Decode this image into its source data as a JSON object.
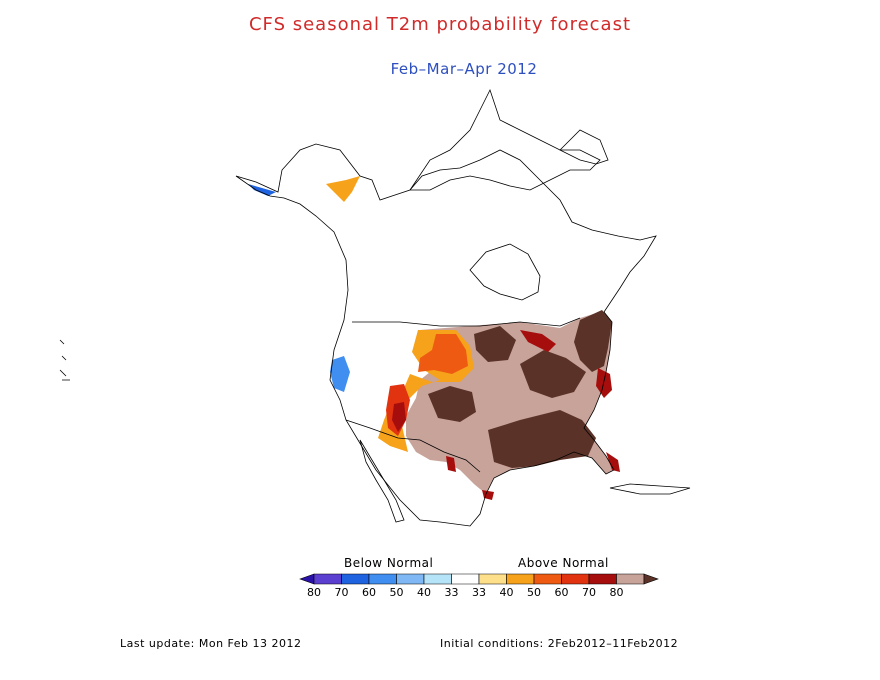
{
  "title": "CFS seasonal T2m probability forecast",
  "subtitle": "Feb–Mar–Apr 2012",
  "colors": {
    "title": "#d12a2a",
    "subtitle": "#2d4fbf",
    "coast": "#000000",
    "below_80": "#2a12a8",
    "below_70": "#5a3fd0",
    "below_60": "#1f63e0",
    "below_50": "#3f8ef0",
    "below_40": "#7fb8f5",
    "below_33": "#b5e3f8",
    "near": "#ffffff",
    "above_33": "#ffe08a",
    "above_40": "#f7a21b",
    "above_50": "#ee5a12",
    "above_60": "#e1330f",
    "above_70": "#a60d0d",
    "above_80": "#c8a39a",
    "above_max": "#5a3228"
  },
  "legend": {
    "below_label": "Below Normal",
    "above_label": "Above Normal",
    "ticks": [
      "80",
      "70",
      "60",
      "50",
      "40",
      "33",
      "33",
      "40",
      "50",
      "60",
      "70",
      "80"
    ],
    "bins": [
      "below_80",
      "below_70",
      "below_60",
      "below_50",
      "below_40",
      "below_33",
      "near",
      "above_33",
      "above_40",
      "above_50",
      "above_60",
      "above_70",
      "above_80",
      "above_max"
    ]
  },
  "footer": {
    "last_update": "Last update: Mon Feb 13 2012",
    "initial_conditions": "Initial conditions: 2Feb2012–11Feb2012"
  }
}
